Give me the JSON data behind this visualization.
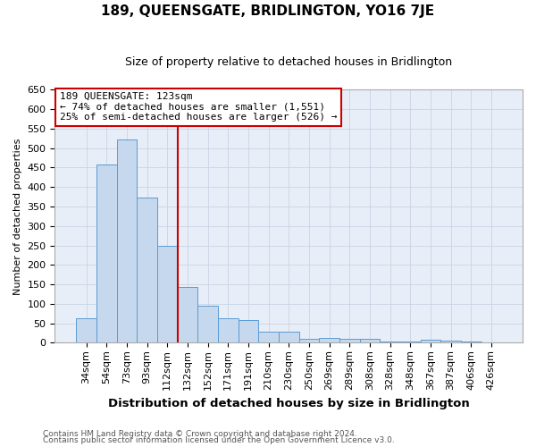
{
  "title": "189, QUEENSGATE, BRIDLINGTON, YO16 7JE",
  "subtitle": "Size of property relative to detached houses in Bridlington",
  "xlabel": "Distribution of detached houses by size in Bridlington",
  "ylabel": "Number of detached properties",
  "footer_line1": "Contains HM Land Registry data © Crown copyright and database right 2024.",
  "footer_line2": "Contains public sector information licensed under the Open Government Licence v3.0.",
  "bar_labels": [
    "34sqm",
    "54sqm",
    "73sqm",
    "93sqm",
    "112sqm",
    "132sqm",
    "152sqm",
    "171sqm",
    "191sqm",
    "210sqm",
    "230sqm",
    "250sqm",
    "269sqm",
    "289sqm",
    "308sqm",
    "328sqm",
    "348sqm",
    "367sqm",
    "387sqm",
    "406sqm",
    "426sqm"
  ],
  "bar_values": [
    62,
    457,
    523,
    372,
    250,
    143,
    95,
    62,
    58,
    28,
    28,
    10,
    12,
    10,
    10,
    3,
    3,
    8,
    5,
    3,
    2
  ],
  "bar_color": "#c5d8ed",
  "bar_edge_color": "#5b9bd5",
  "vline_color": "#cc0000",
  "vline_bar_index": 5,
  "ylim": [
    0,
    650
  ],
  "yticks": [
    0,
    50,
    100,
    150,
    200,
    250,
    300,
    350,
    400,
    450,
    500,
    550,
    600,
    650
  ],
  "annotation_title": "189 QUEENSGATE: 123sqm",
  "annotation_line1": "← 74% of detached houses are smaller (1,551)",
  "annotation_line2": "25% of semi-detached houses are larger (526) →",
  "grid_color": "#c8d4e4",
  "background_color": "#e8eef7",
  "title_fontsize": 11,
  "subtitle_fontsize": 9,
  "ylabel_fontsize": 8,
  "xlabel_fontsize": 9.5,
  "tick_fontsize": 8,
  "footer_fontsize": 6.5,
  "ann_fontsize": 8
}
